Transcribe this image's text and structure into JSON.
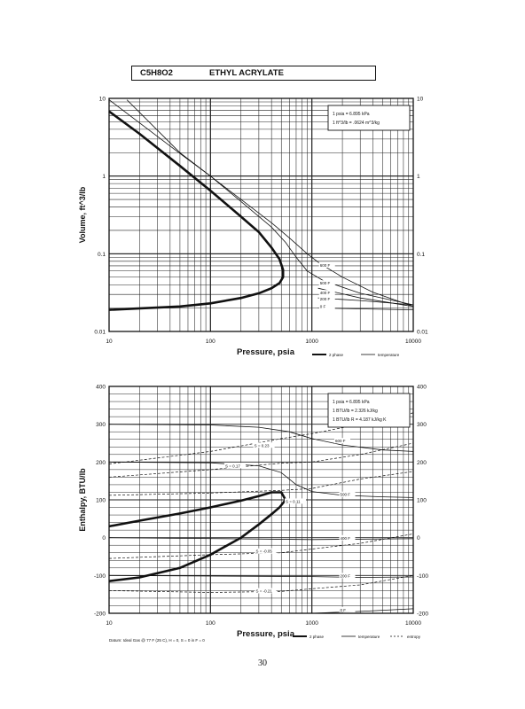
{
  "header": {
    "formula": "C5H8O2",
    "name": "ETHYL ACRYLATE"
  },
  "page_number": "30",
  "chart_data": [
    {
      "type": "line",
      "xscale": "log",
      "yscale": "log",
      "xlim": [
        10,
        10000
      ],
      "ylim": [
        0.01,
        10
      ],
      "xlabel": "Pressure,  psia",
      "ylabel": "Volume, ft^3/lb",
      "x_ticks": [
        "10",
        "100",
        "1000",
        "10000"
      ],
      "y_ticks": [
        "10",
        "1",
        "0.1",
        "0.01"
      ],
      "notes": [
        "1 psia  =  6.895 kPa",
        "1 ft^3/lb  =  .0624 m^3/kg"
      ],
      "legend": [
        "2 phase",
        "temperature"
      ],
      "curve_labels": [
        "600 F",
        "500 F",
        "400 F",
        "200 F",
        "0 F"
      ],
      "series": [
        {
          "name": "2 phase",
          "style": "bold",
          "points": [
            [
              10,
              6.8
            ],
            [
              20,
              3.5
            ],
            [
              50,
              1.35
            ],
            [
              100,
              0.65
            ],
            [
              200,
              0.3
            ],
            [
              300,
              0.19
            ],
            [
              400,
              0.12
            ],
            [
              480,
              0.085
            ],
            [
              520,
              0.062
            ],
            [
              520,
              0.05
            ],
            [
              480,
              0.042
            ],
            [
              400,
              0.036
            ],
            [
              300,
              0.031
            ],
            [
              200,
              0.027
            ],
            [
              100,
              0.023
            ],
            [
              50,
              0.021
            ],
            [
              10,
              0.019
            ]
          ]
        },
        {
          "name": "600 F",
          "style": "thin",
          "points": [
            [
              10,
              9.6
            ],
            [
              50,
              1.95
            ],
            [
              100,
              1.0
            ],
            [
              200,
              0.5
            ],
            [
              400,
              0.25
            ],
            [
              600,
              0.16
            ],
            [
              900,
              0.1
            ],
            [
              1200,
              0.075
            ],
            [
              2000,
              0.05
            ],
            [
              4000,
              0.032
            ],
            [
              10000,
              0.021
            ]
          ]
        },
        {
          "name": "500 F",
          "style": "thin",
          "points": [
            [
              15,
              9.6
            ],
            [
              50,
              2.0
            ],
            [
              100,
              1.0
            ],
            [
              200,
              0.47
            ],
            [
              400,
              0.22
            ],
            [
              550,
              0.14
            ],
            [
              700,
              0.09
            ],
            [
              900,
              0.06
            ],
            [
              1300,
              0.045
            ],
            [
              3000,
              0.031
            ],
            [
              10000,
              0.022
            ]
          ]
        },
        {
          "name": "400 F",
          "style": "thin",
          "points": [
            [
              1150,
              0.036
            ],
            [
              3000,
              0.027
            ],
            [
              10000,
              0.021
            ]
          ]
        },
        {
          "name": "200 F",
          "style": "thin",
          "points": [
            [
              1150,
              0.027
            ],
            [
              3000,
              0.025
            ],
            [
              10000,
              0.022
            ]
          ]
        },
        {
          "name": "0 F",
          "style": "thin",
          "points": [
            [
              1150,
              0.02
            ],
            [
              10000,
              0.019
            ]
          ]
        }
      ]
    },
    {
      "type": "line",
      "xscale": "log",
      "yscale": "linear",
      "xlim": [
        10,
        10000
      ],
      "ylim": [
        -200,
        400
      ],
      "xlabel": "Pressure,  psia",
      "ylabel": "Enthalpy, BTU/lb",
      "x_ticks": [
        "10",
        "100",
        "1000",
        "10000"
      ],
      "y_ticks_left": [
        "400",
        "300",
        "200",
        "100",
        "0",
        "-100",
        "-200"
      ],
      "y_ticks_right": [
        "400",
        "300",
        "200",
        "100",
        "0",
        "-100",
        "-200"
      ],
      "notes": [
        "1 psia  =  6.895 kPa",
        "1 BTU/lb  =  2.326 kJ/kg",
        "1 BTU/lb R  =  4.187 kJ/kg K"
      ],
      "footnote": "Datum: Ideal Gas @ 77 F (25 C),  H = 0,  S = 0 in F = 0",
      "legend": [
        "2 phase",
        "temperature",
        "entropy"
      ],
      "curve_labels": [
        "600 F",
        "500 F",
        "400 F",
        "200 F",
        "0 F"
      ],
      "entropy_labels": [
        "S = 0.23",
        "S = 0.17",
        "S = 0.11",
        "S = -0.05",
        "S = -0.21"
      ],
      "series": [
        {
          "name": "2 phase",
          "style": "bold",
          "points": [
            [
              10,
              30
            ],
            [
              20,
              45
            ],
            [
              50,
              64
            ],
            [
              100,
              80
            ],
            [
              200,
              98
            ],
            [
              300,
              110
            ],
            [
              400,
              120
            ],
            [
              500,
              120
            ],
            [
              550,
              100
            ],
            [
              480,
              80
            ],
            [
              400,
              62
            ],
            [
              300,
              35
            ],
            [
              200,
              0
            ],
            [
              100,
              -45
            ],
            [
              50,
              -80
            ],
            [
              20,
              -105
            ],
            [
              10,
              -115
            ]
          ]
        },
        {
          "name": "600 F",
          "style": "thin",
          "points": [
            [
              10,
              300
            ],
            [
              100,
              298
            ],
            [
              300,
              292
            ],
            [
              600,
              280
            ],
            [
              1000,
              262
            ],
            [
              2000,
              245
            ],
            [
              5000,
              232
            ],
            [
              10000,
              228
            ]
          ]
        },
        {
          "name": "500 F",
          "style": "thin",
          "points": [
            [
              10,
              200
            ],
            [
              100,
              198
            ],
            [
              300,
              190
            ],
            [
              500,
              172
            ],
            [
              700,
              140
            ],
            [
              1000,
              122
            ],
            [
              2000,
              112
            ],
            [
              5000,
              108
            ],
            [
              10000,
              106
            ]
          ]
        },
        {
          "name": "400 F",
          "style": "thin",
          "points": [
            [
              10,
              0
            ],
            [
              1000,
              -5
            ],
            [
              3000,
              -4
            ],
            [
              10000,
              -3
            ]
          ]
        },
        {
          "name": "200 F",
          "style": "thin",
          "points": [
            [
              10,
              -100
            ],
            [
              1000,
              -103
            ],
            [
              3000,
              -105
            ],
            [
              10000,
              -104
            ]
          ]
        },
        {
          "name": "0 F",
          "style": "thin",
          "points": [
            [
              10,
              -200
            ],
            [
              1000,
              -200
            ],
            [
              3000,
              -195
            ],
            [
              10000,
              -188
            ]
          ]
        },
        {
          "name": "S = 0.23",
          "style": "dashed",
          "points": [
            [
              10,
              195
            ],
            [
              100,
              228
            ],
            [
              500,
              262
            ],
            [
              1000,
              275
            ],
            [
              3000,
              300
            ],
            [
              10000,
              330
            ]
          ]
        },
        {
          "name": "S = 0.17",
          "style": "dashed",
          "points": [
            [
              10,
              160
            ],
            [
              100,
              180
            ],
            [
              500,
              197
            ],
            [
              1000,
              200
            ],
            [
              3000,
              220
            ],
            [
              10000,
              250
            ]
          ]
        },
        {
          "name": "S = 0.11",
          "style": "dashed",
          "points": [
            [
              10,
              112
            ],
            [
              100,
              118
            ],
            [
              500,
              125
            ],
            [
              1000,
              130
            ],
            [
              3000,
              155
            ],
            [
              10000,
              175
            ]
          ]
        },
        {
          "name": "S = -0.05",
          "style": "dashed",
          "points": [
            [
              10,
              -55
            ],
            [
              100,
              -45
            ],
            [
              500,
              -40
            ],
            [
              1000,
              -30
            ],
            [
              3000,
              -15
            ],
            [
              10000,
              10
            ]
          ]
        },
        {
          "name": "S = -0.21",
          "style": "dashed",
          "points": [
            [
              10,
              -140
            ],
            [
              100,
              -145
            ],
            [
              500,
              -142
            ],
            [
              1000,
              -135
            ],
            [
              3000,
              -125
            ],
            [
              10000,
              -100
            ]
          ]
        }
      ]
    }
  ]
}
